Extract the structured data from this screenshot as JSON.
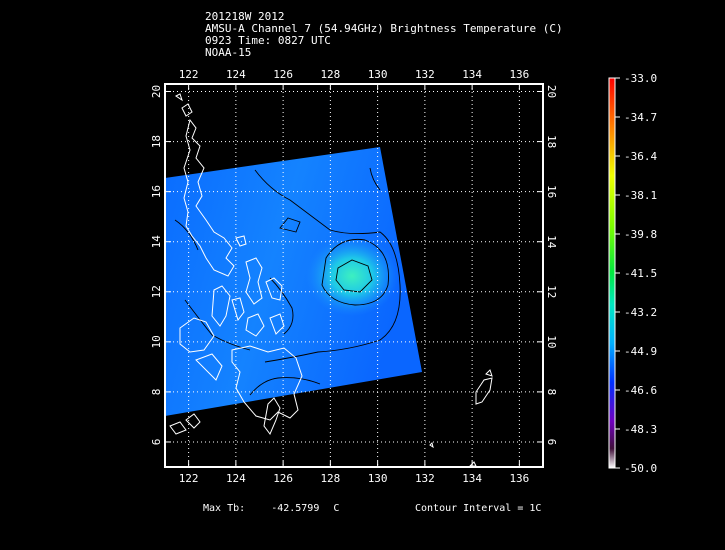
{
  "header": {
    "line1": "201218W 2012",
    "line2": "AMSU-A Channel 7 (54.94GHz) Brightness Temperature (C)",
    "line3": "0923 Time: 0827 UTC",
    "line4": "NOAA-15"
  },
  "map": {
    "lon_ticks": [
      "122",
      "124",
      "126",
      "128",
      "130",
      "132",
      "134",
      "136"
    ],
    "lat_ticks": [
      "6",
      "8",
      "10",
      "12",
      "14",
      "16",
      "18",
      "20"
    ],
    "lon_range": [
      121,
      137
    ],
    "lat_range": [
      5,
      20.3
    ],
    "grid": true,
    "swath_colors": {
      "outer": "#0a5cff",
      "inner": "#1a90ff",
      "core": "#2ce6c8"
    }
  },
  "colorbar": {
    "labels": [
      "-33.0",
      "-34.7",
      "-36.4",
      "-38.1",
      "-39.8",
      "-41.5",
      "-43.2",
      "-44.9",
      "-46.6",
      "-48.3",
      "-50.0"
    ],
    "range": [
      -50.0,
      -33.0
    ]
  },
  "footer": {
    "max_tb_label": "Max Tb:",
    "max_tb_value": "-42.5799",
    "max_tb_unit": "C",
    "contour_interval": "Contour Interval = 1C"
  }
}
